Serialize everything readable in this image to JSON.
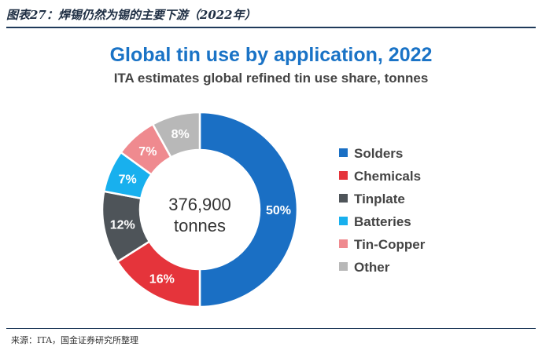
{
  "figure_title": "图表27：焊锡仍然为锡的主要下游（2022年）",
  "source_note": "来源：ITA，国金证券研究所整理",
  "chart_data": {
    "type": "pie",
    "title": "Global tin use by application, 2022",
    "subtitle": "ITA estimates global refined tin use share, tonnes",
    "center_label": [
      "376,900",
      "tonnes"
    ],
    "legend_position": "right",
    "slices": [
      {
        "name": "Solders",
        "value": 50,
        "label": "50%",
        "color": "#1a6fc4"
      },
      {
        "name": "Chemicals",
        "value": 16,
        "label": "16%",
        "color": "#e5343b"
      },
      {
        "name": "Tinplate",
        "value": 12,
        "label": "12%",
        "color": "#4e5459"
      },
      {
        "name": "Batteries",
        "value": 7,
        "label": "7%",
        "color": "#18b0ee"
      },
      {
        "name": "Tin-Copper",
        "value": 7,
        "label": "7%",
        "color": "#ef8a8f"
      },
      {
        "name": "Other",
        "value": 8,
        "label": "8%",
        "color": "#b8b8b8"
      }
    ]
  }
}
